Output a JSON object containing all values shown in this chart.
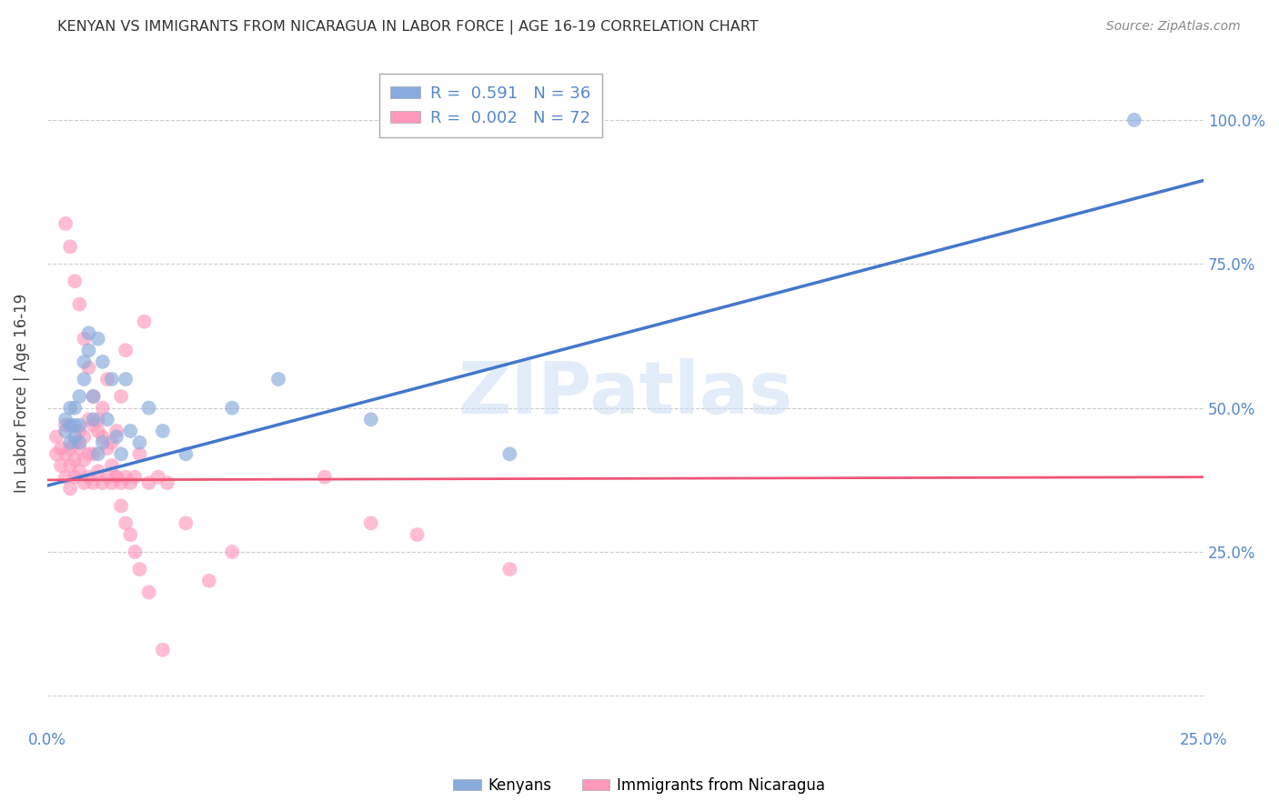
{
  "title": "KENYAN VS IMMIGRANTS FROM NICARAGUA IN LABOR FORCE | AGE 16-19 CORRELATION CHART",
  "source": "Source: ZipAtlas.com",
  "ylabel": "In Labor Force | Age 16-19",
  "xlim": [
    0.0,
    0.25
  ],
  "ylim": [
    -0.05,
    1.1
  ],
  "xticks": [
    0.0,
    0.25
  ],
  "xticklabels": [
    "0.0%",
    "25.0%"
  ],
  "yticks_right": [
    0.25,
    0.5,
    0.75,
    1.0
  ],
  "yticklabels_right": [
    "25.0%",
    "50.0%",
    "75.0%",
    "100.0%"
  ],
  "grid_yticks": [
    0.0,
    0.25,
    0.5,
    0.75,
    1.0
  ],
  "background_color": "#ffffff",
  "grid_color": "#cccccc",
  "legend_R1": "R =  0.591",
  "legend_N1": "N = 36",
  "legend_R2": "R =  0.002",
  "legend_N2": "N = 72",
  "blue_color": "#88aadd",
  "pink_color": "#ff99bb",
  "blue_line_color": "#4477cc",
  "pink_line_color": "#ee5577",
  "title_color": "#333333",
  "axis_tick_color": "#5588cc",
  "blue_line_x": [
    0.0,
    0.25
  ],
  "blue_line_y": [
    0.365,
    0.895
  ],
  "pink_line_x": [
    0.0,
    0.25
  ],
  "pink_line_y": [
    0.375,
    0.38
  ],
  "kenyans_x": [
    0.004,
    0.004,
    0.005,
    0.005,
    0.005,
    0.006,
    0.006,
    0.006,
    0.007,
    0.007,
    0.007,
    0.008,
    0.008,
    0.009,
    0.009,
    0.01,
    0.01,
    0.011,
    0.011,
    0.012,
    0.012,
    0.013,
    0.014,
    0.015,
    0.016,
    0.017,
    0.018,
    0.02,
    0.022,
    0.025,
    0.03,
    0.04,
    0.05,
    0.07,
    0.1,
    0.235
  ],
  "kenyans_y": [
    0.46,
    0.48,
    0.44,
    0.47,
    0.5,
    0.45,
    0.47,
    0.5,
    0.44,
    0.47,
    0.52,
    0.55,
    0.58,
    0.6,
    0.63,
    0.48,
    0.52,
    0.62,
    0.42,
    0.44,
    0.58,
    0.48,
    0.55,
    0.45,
    0.42,
    0.55,
    0.46,
    0.44,
    0.5,
    0.46,
    0.42,
    0.5,
    0.55,
    0.48,
    0.42,
    1.0
  ],
  "nicaragua_x": [
    0.002,
    0.002,
    0.003,
    0.003,
    0.004,
    0.004,
    0.004,
    0.005,
    0.005,
    0.005,
    0.006,
    0.006,
    0.006,
    0.007,
    0.007,
    0.007,
    0.008,
    0.008,
    0.008,
    0.009,
    0.009,
    0.009,
    0.01,
    0.01,
    0.01,
    0.011,
    0.011,
    0.012,
    0.012,
    0.013,
    0.013,
    0.014,
    0.014,
    0.015,
    0.015,
    0.016,
    0.016,
    0.017,
    0.017,
    0.018,
    0.019,
    0.02,
    0.021,
    0.022,
    0.024,
    0.026,
    0.06,
    0.07,
    0.08,
    0.1,
    0.004,
    0.005,
    0.006,
    0.007,
    0.008,
    0.009,
    0.01,
    0.011,
    0.012,
    0.013,
    0.014,
    0.015,
    0.016,
    0.017,
    0.018,
    0.019,
    0.02,
    0.022,
    0.025,
    0.03,
    0.035,
    0.04
  ],
  "nicaragua_y": [
    0.42,
    0.45,
    0.4,
    0.43,
    0.38,
    0.42,
    0.47,
    0.4,
    0.43,
    0.36,
    0.38,
    0.41,
    0.44,
    0.39,
    0.43,
    0.46,
    0.37,
    0.41,
    0.45,
    0.38,
    0.42,
    0.48,
    0.37,
    0.42,
    0.47,
    0.39,
    0.46,
    0.37,
    0.5,
    0.38,
    0.55,
    0.37,
    0.44,
    0.38,
    0.46,
    0.37,
    0.52,
    0.38,
    0.6,
    0.37,
    0.38,
    0.42,
    0.65,
    0.37,
    0.38,
    0.37,
    0.38,
    0.3,
    0.28,
    0.22,
    0.82,
    0.78,
    0.72,
    0.68,
    0.62,
    0.57,
    0.52,
    0.48,
    0.45,
    0.43,
    0.4,
    0.38,
    0.33,
    0.3,
    0.28,
    0.25,
    0.22,
    0.18,
    0.08,
    0.3,
    0.2,
    0.25
  ]
}
